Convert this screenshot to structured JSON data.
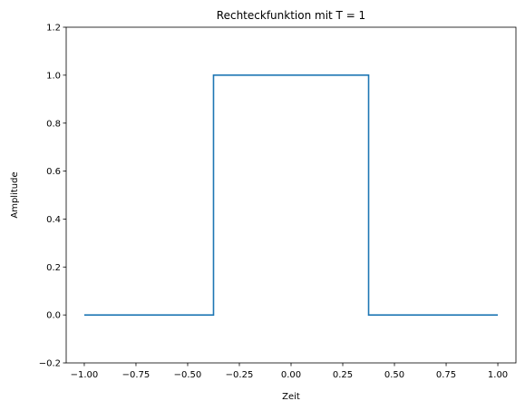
{
  "chart_data": {
    "type": "line",
    "title": "Rechteckfunktion mit T = 1",
    "xlabel": "Zeit",
    "ylabel": "Amplitude",
    "xlim": [
      -1.0875,
      1.0875
    ],
    "ylim": [
      -0.2,
      1.2
    ],
    "x_ticks": [
      -1.0,
      -0.75,
      -0.5,
      -0.25,
      0.0,
      0.25,
      0.5,
      0.75,
      1.0
    ],
    "x_tick_labels": [
      "−1.00",
      "−0.75",
      "−0.50",
      "−0.25",
      "0.00",
      "0.25",
      "0.50",
      "0.75",
      "1.00"
    ],
    "y_ticks": [
      -0.2,
      0.0,
      0.2,
      0.4,
      0.6,
      0.8,
      1.0,
      1.2
    ],
    "y_tick_labels": [
      "−0.2",
      "0.0",
      "0.2",
      "0.4",
      "0.6",
      "0.8",
      "1.0",
      "1.2"
    ],
    "grid": false,
    "series": [
      {
        "color": "#1f77b4",
        "x": [
          -1.0,
          -0.375,
          -0.375,
          0.375,
          0.375,
          1.0
        ],
        "y": [
          0.0,
          0.0,
          1.0,
          1.0,
          0.0,
          0.0
        ]
      }
    ]
  }
}
